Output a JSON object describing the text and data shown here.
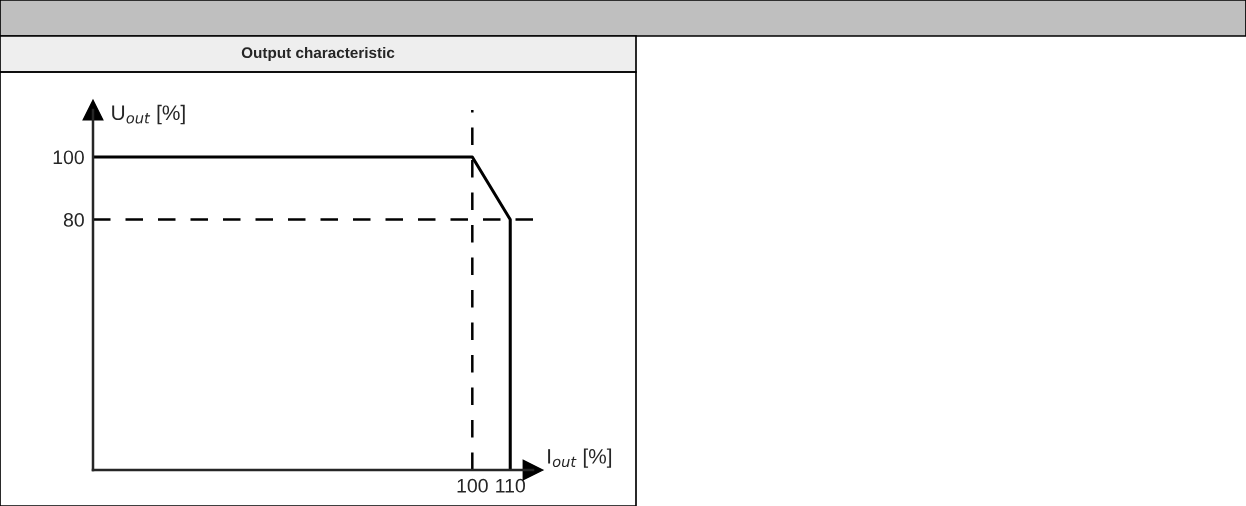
{
  "chart_data": {
    "type": "line",
    "title": "Output characteristic",
    "xlabel": "I$_{out}$ [%]",
    "ylabel": "U$_{out}$ [%]",
    "x": [
      0,
      100,
      110,
      110
    ],
    "series": [
      {
        "color": "#000000",
        "values": [
          100,
          100,
          80,
          0
        ]
      }
    ],
    "xlim": [
      0,
      116
    ],
    "ylim": [
      0,
      115
    ],
    "xticks": [
      100,
      110
    ],
    "yticks": [
      80,
      100
    ],
    "ref_lines": [
      {
        "axis": "x",
        "value": 100,
        "color": "#000000",
        "line_style": "dashed"
      },
      {
        "axis": "y",
        "value": 80,
        "color": "#000000",
        "line_style": "dashed"
      }
    ],
    "grid": false,
    "marker": "none",
    "line_style": "solid"
  }
}
